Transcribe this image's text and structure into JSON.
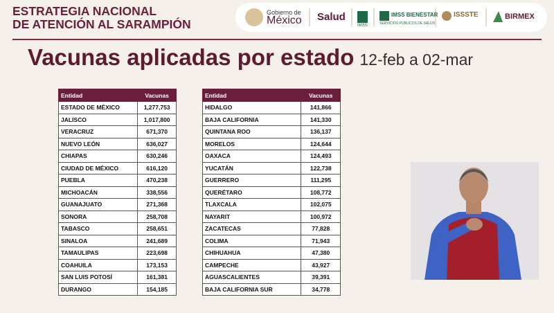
{
  "header": {
    "title_lines": [
      "ESTRATEGIA NACIONAL",
      "DE ATENCIÓN AL SARAMPIÓN"
    ],
    "logos": [
      "Gobierno de",
      "México",
      "Salud",
      "IMSS",
      "IMSS BIENESTAR",
      "SERVICIOS PÚBLICOS DE SALUD",
      "ISSSTE",
      "BIRMEX"
    ]
  },
  "slide": {
    "title": "Vacunas aplicadas por estado",
    "subtitle": "12-feb a 02-mar"
  },
  "tables": [
    {
      "columns": [
        "Entidad",
        "Vacunas"
      ],
      "rows": [
        [
          "ESTADO DE MÉXICO",
          "1,277,753"
        ],
        [
          "JALISCO",
          "1,017,800"
        ],
        [
          "VERACRUZ",
          "671,370"
        ],
        [
          "NUEVO LEÓN",
          "636,027"
        ],
        [
          "CHIAPAS",
          "630,246"
        ],
        [
          "CIUDAD DE MÉXICO",
          "616,120"
        ],
        [
          "PUEBLA",
          "470,238"
        ],
        [
          "MICHOACÁN",
          "338,556"
        ],
        [
          "GUANAJUATO",
          "271,368"
        ],
        [
          "SONORA",
          "258,708"
        ],
        [
          "TABASCO",
          "258,651"
        ],
        [
          "SINALOA",
          "241,689"
        ],
        [
          "TAMAULIPAS",
          "223,698"
        ],
        [
          "COAHUILA",
          "173,153"
        ],
        [
          "SAN LUIS POTOSÍ",
          "161,381"
        ],
        [
          "DURANGO",
          "154,185"
        ]
      ]
    },
    {
      "columns": [
        "Entidad",
        "Vacunas"
      ],
      "rows": [
        [
          "HIDALGO",
          "141,866"
        ],
        [
          "BAJA CALIFORNIA",
          "141,330"
        ],
        [
          "QUINTANA ROO",
          "136,137"
        ],
        [
          "MORELOS",
          "124,644"
        ],
        [
          "OAXACA",
          "124,493"
        ],
        [
          "YUCATÁN",
          "122,738"
        ],
        [
          "GUERRERO",
          "111,295"
        ],
        [
          "QUERÉTARO",
          "108,772"
        ],
        [
          "TLAXCALA",
          "102,075"
        ],
        [
          "NAYARIT",
          "100,972"
        ],
        [
          "ZACATECAS",
          "77,828"
        ],
        [
          "COLIMA",
          "71,943"
        ],
        [
          "CHIHUAHUA",
          "47,380"
        ],
        [
          "CAMPECHE",
          "43,927"
        ],
        [
          "AGUASCALIENTES",
          "39,391"
        ],
        [
          "BAJA CALIFORNIA SUR",
          "34,778"
        ]
      ]
    }
  ]
}
